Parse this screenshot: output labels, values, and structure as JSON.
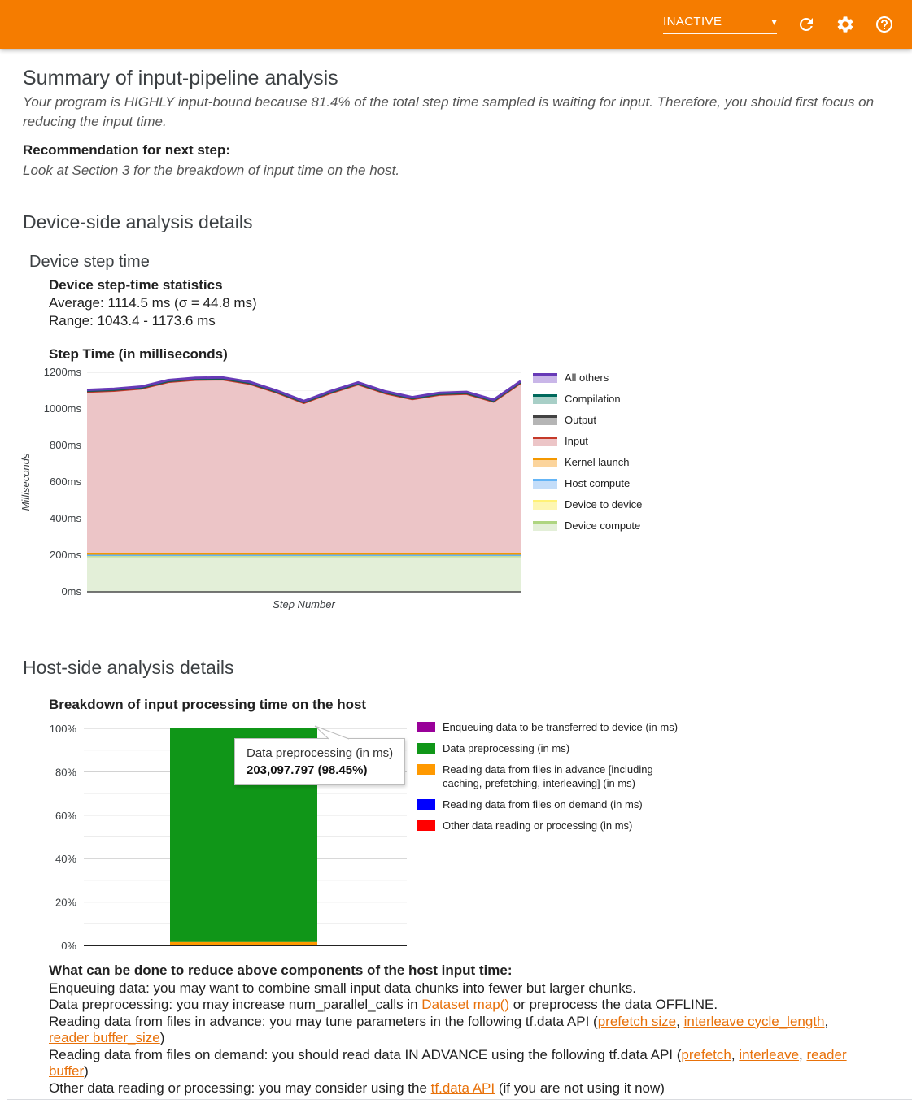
{
  "header": {
    "status": "INACTIVE",
    "caret_glyph": "▾",
    "icons": [
      {
        "name": "caret-down-icon"
      },
      {
        "name": "refresh-icon"
      },
      {
        "name": "gear-icon"
      },
      {
        "name": "help-icon"
      }
    ]
  },
  "summary": {
    "title": "Summary of input-pipeline analysis",
    "body": "Your program is HIGHLY input-bound because 81.4% of the total step time sampled is waiting for input. Therefore, you should first focus on reducing the input time.",
    "recommendation_label": "Recommendation for next step:",
    "recommendation_text": "Look at Section 3 for the breakdown of input time on the host."
  },
  "device_section": {
    "title": "Device-side analysis details",
    "subtitle": "Device step time",
    "stats_title": "Device step-time statistics",
    "stats_average": "Average: 1114.5 ms (σ = 44.8 ms)",
    "stats_range": "Range: 1043.4 - 1173.6 ms",
    "chart_title": "Step Time (in milliseconds)"
  },
  "host_section": {
    "title": "Host-side analysis details",
    "chart_title": "Breakdown of input processing time on the host",
    "tooltip": {
      "line1": "Data preprocessing (in ms)",
      "line2": "203,097.797 (98.45%)"
    },
    "advice_title": "What can be done to reduce above components of the host input time:",
    "tips": [
      {
        "segments": [
          {
            "text": "Enqueuing data: you may want to combine small input data chunks into fewer but larger chunks."
          }
        ]
      },
      {
        "segments": [
          {
            "text": "Data preprocessing: you may increase num_parallel_calls in "
          },
          {
            "text": "Dataset map()",
            "link": true
          },
          {
            "text": " or preprocess the data OFFLINE."
          }
        ]
      },
      {
        "segments": [
          {
            "text": "Reading data from files in advance: you may tune parameters in the following tf.data API ("
          },
          {
            "text": "prefetch size",
            "link": true
          },
          {
            "text": ", "
          },
          {
            "text": "interleave cycle_length",
            "link": true
          },
          {
            "text": ", "
          },
          {
            "text": "reader buffer_size",
            "link": true
          },
          {
            "text": ")"
          }
        ]
      },
      {
        "segments": [
          {
            "text": "Reading data from files on demand: you should read data IN ADVANCE using the following tf.data API ("
          },
          {
            "text": "prefetch",
            "link": true
          },
          {
            "text": ", "
          },
          {
            "text": "interleave",
            "link": true
          },
          {
            "text": ", "
          },
          {
            "text": "reader buffer",
            "link": true
          },
          {
            "text": ")"
          }
        ]
      },
      {
        "segments": [
          {
            "text": "Other data reading or processing: you may consider using the "
          },
          {
            "text": "tf.data API",
            "link": true
          },
          {
            "text": " (if you are not using it now)"
          }
        ]
      }
    ]
  },
  "chart_data": [
    {
      "type": "area",
      "title": "Step Time (in milliseconds)",
      "xlabel": "Step Number",
      "ylabel": "Milliseconds",
      "ylim": [
        0,
        1200
      ],
      "yticks": [
        "0ms",
        "200ms",
        "400ms",
        "600ms",
        "800ms",
        "1000ms",
        "1200ms"
      ],
      "grid": true,
      "legend_position": "right",
      "num_steps": 17,
      "series": [
        {
          "name": "Device compute",
          "color": "#aed581",
          "fill": "#e3efd8",
          "lw": 1.5,
          "values": [
            193,
            193,
            193,
            193,
            193,
            193,
            193,
            193,
            193,
            193,
            193,
            193,
            193,
            193,
            193,
            193,
            193
          ]
        },
        {
          "name": "Device to device",
          "color": "#fff176",
          "fill": "#fdf6b3",
          "lw": 2,
          "values": [
            3,
            3,
            3,
            3,
            3,
            3,
            3,
            3,
            3,
            3,
            3,
            3,
            3,
            3,
            3,
            3,
            3
          ]
        },
        {
          "name": "Host compute",
          "color": "#64b5f6",
          "fill": "#c3ddf9",
          "lw": 2,
          "values": [
            3,
            3,
            3,
            3,
            3,
            3,
            3,
            3,
            3,
            3,
            3,
            3,
            3,
            3,
            3,
            3,
            3
          ]
        },
        {
          "name": "Kernel launch",
          "color": "#f49800",
          "fill": "#fbd49c",
          "lw": 2.5,
          "values": [
            9,
            9,
            9,
            9,
            9,
            9,
            9,
            9,
            9,
            9,
            9,
            9,
            9,
            9,
            9,
            9,
            9
          ]
        },
        {
          "name": "Input",
          "color": "#c53929",
          "fill": "#ecc5c7",
          "lw": 2,
          "values": [
            884,
            890,
            902,
            938,
            950,
            952,
            928,
            880,
            823,
            878,
            925,
            876,
            844,
            868,
            873,
            830,
            932
          ]
        },
        {
          "name": "Output",
          "color": "#424242",
          "fill": "#b5b5b5",
          "lw": 2,
          "values": [
            4,
            4,
            4,
            4,
            4,
            4,
            4,
            4,
            4,
            4,
            4,
            4,
            4,
            4,
            4,
            4,
            4
          ]
        },
        {
          "name": "Compilation",
          "color": "#00695c",
          "fill": "#a8cfc7",
          "lw": 2.5,
          "values": [
            4,
            4,
            4,
            4,
            4,
            4,
            4,
            4,
            4,
            4,
            4,
            4,
            4,
            4,
            4,
            4,
            4
          ]
        },
        {
          "name": "All others",
          "color": "#673ab7",
          "fill": "#c9b6e8",
          "lw": 3,
          "values": [
            4,
            4,
            4,
            4,
            4,
            4,
            4,
            4,
            4,
            4,
            4,
            4,
            4,
            4,
            4,
            4,
            4
          ]
        }
      ],
      "totals": [
        1104,
        1110,
        1122,
        1158,
        1170,
        1172,
        1148,
        1100,
        1043,
        1098,
        1145,
        1096,
        1064,
        1088,
        1093,
        1050,
        1152
      ]
    },
    {
      "type": "bar",
      "title": "Breakdown of input processing time on the host",
      "ylim": [
        0,
        100
      ],
      "yticks": [
        "0%",
        "20%",
        "40%",
        "60%",
        "80%",
        "100%"
      ],
      "grid": true,
      "legend_position": "right",
      "series": [
        {
          "name": "Enqueuing data to be transferred to device (in ms)",
          "color": "#990099",
          "pct": 0,
          "from": 0,
          "to": 0
        },
        {
          "name": "Data preprocessing (in ms)",
          "color": "#109618",
          "pct": 98.45,
          "from": 1.55,
          "to": 100,
          "value_ms": "203,097.797"
        },
        {
          "name": "Reading data from files in advance [including caching, prefetching, interleaving] (in ms)",
          "color": "#ff9900",
          "pct": 1.55,
          "from": 0,
          "to": 1.55
        },
        {
          "name": "Reading data from files on demand (in ms)",
          "color": "#0000ff",
          "pct": 0,
          "from": 0,
          "to": 0
        },
        {
          "name": "Other data reading or processing (in ms)",
          "color": "#ff0000",
          "pct": 0,
          "from": 0,
          "to": 0
        }
      ]
    }
  ]
}
